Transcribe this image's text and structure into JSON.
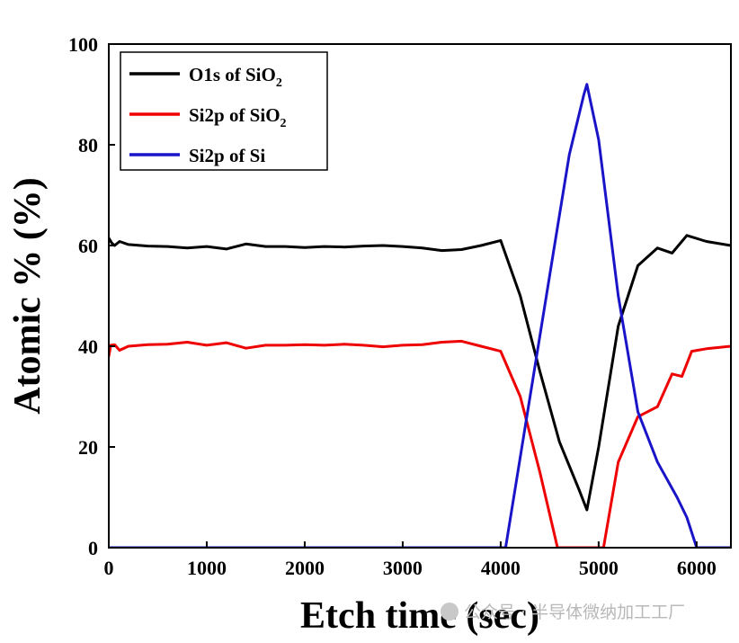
{
  "chart_data": {
    "type": "line",
    "title": "",
    "xlabel": "Etch time (sec)",
    "ylabel": "Atomic % (%)",
    "xlim": [
      0,
      6350
    ],
    "ylim": [
      0,
      100
    ],
    "xticks": [
      0,
      1000,
      2000,
      3000,
      4000,
      5000,
      6000
    ],
    "yticks": [
      0,
      20,
      40,
      60,
      80,
      100
    ],
    "legend_position": "top-left",
    "series": [
      {
        "name": "O1s of SiO2",
        "label_main": "O1s of SiO",
        "label_sub": "2",
        "color": "#000000",
        "x": [
          0,
          30,
          60,
          110,
          200,
          400,
          600,
          800,
          1000,
          1200,
          1400,
          1600,
          1800,
          2000,
          2200,
          2400,
          2600,
          2800,
          3000,
          3200,
          3400,
          3600,
          3800,
          4000,
          4200,
          4400,
          4600,
          4800,
          4880,
          5000,
          5200,
          5400,
          5600,
          5750,
          5900,
          6100,
          6350
        ],
        "y": [
          61.5,
          60.5,
          60.0,
          60.8,
          60.2,
          59.9,
          59.8,
          59.5,
          59.8,
          59.3,
          60.3,
          59.8,
          59.8,
          59.6,
          59.8,
          59.7,
          59.9,
          60.0,
          59.8,
          59.5,
          59.0,
          59.2,
          60.0,
          61.0,
          50.0,
          35.0,
          21.0,
          11.5,
          7.5,
          20.0,
          44.0,
          56.0,
          59.5,
          58.5,
          62.0,
          60.8,
          60.0
        ]
      },
      {
        "name": "Si2p of SiO2",
        "label_main": "Si2p of SiO",
        "label_sub": "2",
        "color": "#ee0000",
        "x": [
          0,
          20,
          60,
          110,
          200,
          400,
          600,
          800,
          1000,
          1200,
          1400,
          1600,
          1800,
          2000,
          2200,
          2400,
          2600,
          2800,
          3000,
          3200,
          3400,
          3600,
          3800,
          4000,
          4200,
          4400,
          4580,
          4620,
          5000,
          5050,
          5200,
          5400,
          5600,
          5750,
          5850,
          5950,
          6100,
          6350
        ],
        "y": [
          38.0,
          40.2,
          40.3,
          39.2,
          40.0,
          40.3,
          40.4,
          40.8,
          40.2,
          40.7,
          39.6,
          40.2,
          40.2,
          40.3,
          40.2,
          40.4,
          40.2,
          39.9,
          40.2,
          40.3,
          40.8,
          41.0,
          40.0,
          39.0,
          30.0,
          15.0,
          0.0,
          0.0,
          0.0,
          0.0,
          17.0,
          26.0,
          28.0,
          34.5,
          34.0,
          39.0,
          39.5,
          40.0
        ]
      },
      {
        "name": "Si2p of Si",
        "label_main": "Si2p of Si",
        "label_sub": "",
        "color": "#1a14c8",
        "x": [
          0,
          4050,
          4550,
          4700,
          4850,
          4880,
          5000,
          5200,
          5400,
          5600,
          5800,
          5900,
          6000,
          6350
        ],
        "y": [
          0.0,
          0.0,
          60.0,
          78.0,
          90.0,
          92.0,
          81.0,
          50.0,
          27.0,
          17.0,
          10.0,
          6.0,
          0.0,
          0.0
        ]
      }
    ]
  },
  "watermark": {
    "text": "公众号 · 半导体微纳加工工厂"
  }
}
